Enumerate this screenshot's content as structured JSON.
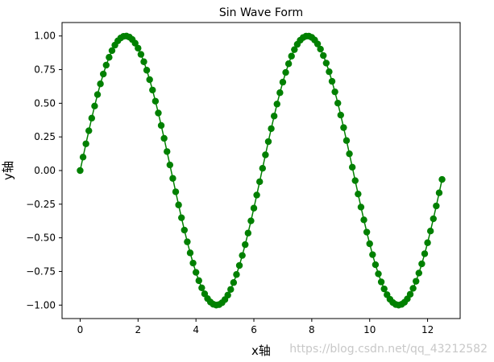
{
  "chart_data": {
    "type": "line",
    "title": "Sin Wave Form",
    "xlabel": "x轴",
    "ylabel": "y轴",
    "xlim": [
      -0.625,
      13.125
    ],
    "ylim": [
      -1.1,
      1.1
    ],
    "xticks": [
      0,
      2,
      4,
      6,
      8,
      10,
      12
    ],
    "xtick_labels": [
      "0",
      "2",
      "4",
      "6",
      "8",
      "10",
      "12"
    ],
    "yticks": [
      -1.0,
      -0.75,
      -0.5,
      -0.25,
      0.0,
      0.25,
      0.5,
      0.75,
      1.0
    ],
    "ytick_labels": [
      "−1.00",
      "−0.75",
      "−0.50",
      "−0.25",
      "0.00",
      "0.25",
      "0.50",
      "0.75",
      "1.00"
    ],
    "grid": false,
    "line_color": "#008000",
    "marker": "circle",
    "series": [
      {
        "function": "sin",
        "x_start": 0,
        "x_step": 0.1,
        "point_count": 126,
        "x_end": 12.5
      }
    ]
  },
  "watermark": "https://blog.csdn.net/qq_43212582"
}
